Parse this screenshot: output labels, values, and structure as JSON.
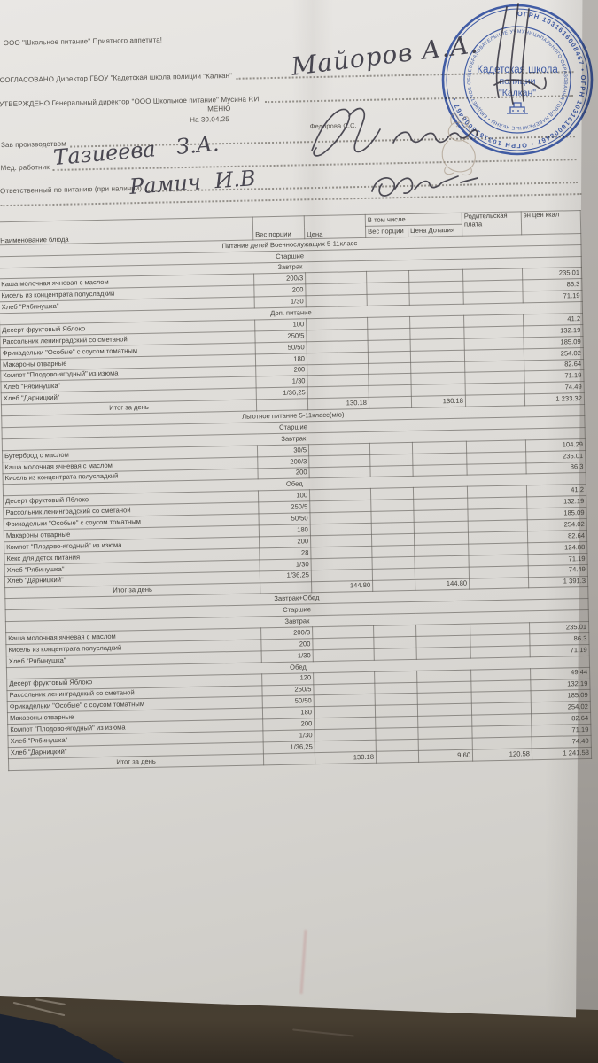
{
  "colors": {
    "stamp_blue": "#2e52b2",
    "ink": "#32303c",
    "paper": "#dcdad6"
  },
  "header": {
    "greeting": "ООО \"Школьное питание\" Приятного аппетита!",
    "agreed_label": "СОГЛАСОВАНО   Директор ГБОУ \"Кадетская школа полиции \"Калкан\"",
    "approved_label": "УТВЕРЖДЕНО   Генеральный директор \"ООО Школьное питание\" Мусина Р.И.",
    "menu_title": "МЕНЮ",
    "date_line": "На 30.04.25",
    "prepared_by": "Федорова С.С.",
    "production_manager_label": "Зав производством",
    "med_worker_label": "Мед. работник",
    "responsible_label": "Ответственный по питанию (при наличии)"
  },
  "signatures": {
    "director_name": "Майоров А.А.",
    "med_worker_name": "Тазиеева З.А.",
    "responsible_name": "Рамич И.В"
  },
  "stamp": {
    "outer_ring": "ОГРН 1031616008467  •  ОГРН 1031616008467  •  ОГРН 1031616008467  •",
    "inner_ring": "МУНИЦИПАЛЬНОГО ОБРАЗОВАНИЯ ГОРОД НАБЕРЕЖНЫЕ ЧЕЛНЫ • БЮДЖЕТНОЕ ОБЩЕОБРАЗОВАТЕЛЬНОЕ УЧРЕЖДЕНИЕ •",
    "center_line1": "Кадетская школа",
    "center_line2": "полиции",
    "center_line3": "\"Калкан\""
  },
  "table": {
    "headers": {
      "name": "Наименование блюда",
      "portion": "Вес порции",
      "price": "Цена",
      "including": "В том числе",
      "portion2": "Вес порции",
      "subsidy": "Цена Дотация",
      "parent": "Родительская плата",
      "kcal": "эн цен ккал"
    },
    "rows": [
      {
        "t": "group",
        "label": "Питание детей Военнослужащих 5-11класс"
      },
      {
        "t": "group",
        "label": "Старшие"
      },
      {
        "t": "group",
        "label": "Завтрак"
      },
      {
        "t": "dish",
        "name": "Каша молочная ячневая с маслом",
        "portion": "200/3",
        "kcal": "235.01"
      },
      {
        "t": "dish",
        "name": "Кисель из концентрата полусладкий",
        "portion": "200",
        "kcal": "86.3"
      },
      {
        "t": "dish",
        "name": "Хлеб \"Рябинушка\"",
        "portion": "1/30",
        "kcal": "71.19"
      },
      {
        "t": "group",
        "label": "Доп. питание"
      },
      {
        "t": "dish",
        "name": "Десерт фруктовый Яблоко",
        "portion": "100",
        "kcal": "41.2"
      },
      {
        "t": "dish",
        "name": "Рассольник ленинградский со сметаной",
        "portion": "250/5",
        "kcal": "132.19"
      },
      {
        "t": "dish",
        "name": "Фрикадельки \"Особые\" с соусом томатным",
        "portion": "50/50",
        "kcal": "185.09"
      },
      {
        "t": "dish",
        "name": "Макароны отварные",
        "portion": "180",
        "kcal": "254.02"
      },
      {
        "t": "dish",
        "name": "Компот \"Плодово-ягодный\" из изюма",
        "portion": "200",
        "kcal": "82.64"
      },
      {
        "t": "dish",
        "name": "Хлеб \"Рябинушка\"",
        "portion": "1/30",
        "kcal": "71.19"
      },
      {
        "t": "dish",
        "name": "Хлеб \"Дарницкий\"",
        "portion": "1/36,25",
        "kcal": "74.49"
      },
      {
        "t": "total",
        "label": "Итог за день",
        "price": "130.18",
        "subsidy": "130.18",
        "parent": "",
        "kcal": "1 233.32"
      },
      {
        "t": "group",
        "label": "Льготное питание 5-11класс(м/о)"
      },
      {
        "t": "group",
        "label": "Старшие"
      },
      {
        "t": "group",
        "label": "Завтрак"
      },
      {
        "t": "dish",
        "name": "Бутерброд с маслом",
        "portion": "30/5",
        "kcal": "104.29"
      },
      {
        "t": "dish",
        "name": "Каша молочная ячневая с маслом",
        "portion": "200/3",
        "kcal": "235.01"
      },
      {
        "t": "dish",
        "name": "Кисель из концентрата полусладкий",
        "portion": "200",
        "kcal": "86.3"
      },
      {
        "t": "group",
        "label": "Обед"
      },
      {
        "t": "dish",
        "name": "Десерт фруктовый Яблоко",
        "portion": "100",
        "kcal": "41.2"
      },
      {
        "t": "dish",
        "name": "Рассольник ленинградский со сметаной",
        "portion": "250/5",
        "kcal": "132.19"
      },
      {
        "t": "dish",
        "name": "Фрикадельки \"Особые\" с соусом томатным",
        "portion": "50/50",
        "kcal": "185.09"
      },
      {
        "t": "dish",
        "name": "Макароны отварные",
        "portion": "180",
        "kcal": "254.02"
      },
      {
        "t": "dish",
        "name": "Компот \"Плодово-ягодный\" из изюма",
        "portion": "200",
        "kcal": "82.64"
      },
      {
        "t": "dish",
        "name": "Кекс для детск питания",
        "portion": "28",
        "kcal": "124.88"
      },
      {
        "t": "dish",
        "name": "Хлеб \"Рябинушка\"",
        "portion": "1/30",
        "kcal": "71.19"
      },
      {
        "t": "dish",
        "name": "Хлеб \"Дарницкий\"",
        "portion": "1/36,25",
        "kcal": "74.49"
      },
      {
        "t": "total",
        "label": "Итог за день",
        "price": "144.80",
        "subsidy": "144.80",
        "parent": "",
        "kcal": "1 391.3"
      },
      {
        "t": "group",
        "label": "Завтрак+Обед"
      },
      {
        "t": "group",
        "label": "Старшие"
      },
      {
        "t": "group",
        "label": "Завтрак"
      },
      {
        "t": "dish",
        "name": "Каша молочная ячневая с маслом",
        "portion": "200/3",
        "kcal": "235.01"
      },
      {
        "t": "dish",
        "name": "Кисель из концентрата полусладкий",
        "portion": "200",
        "kcal": "86.3"
      },
      {
        "t": "dish",
        "name": "Хлеб \"Рябинушка\"",
        "portion": "1/30",
        "kcal": "71.19"
      },
      {
        "t": "group",
        "label": "Обед"
      },
      {
        "t": "dish",
        "name": "Десерт фруктовый Яблоко",
        "portion": "120",
        "kcal": "49.44"
      },
      {
        "t": "dish",
        "name": "Рассольник ленинградский со сметаной",
        "portion": "250/5",
        "kcal": "132.19"
      },
      {
        "t": "dish",
        "name": "Фрикадельки \"Особые\" с соусом томатным",
        "portion": "50/50",
        "kcal": "185.09"
      },
      {
        "t": "dish",
        "name": "Макароны отварные",
        "portion": "180",
        "kcal": "254.02"
      },
      {
        "t": "dish",
        "name": "Компот \"Плодово-ягодный\" из изюма",
        "portion": "200",
        "kcal": "82.64"
      },
      {
        "t": "dish",
        "name": "Хлеб \"Рябинушка\"",
        "portion": "1/30",
        "kcal": "71.19"
      },
      {
        "t": "dish",
        "name": "Хлеб \"Дарницкий\"",
        "portion": "1/36,25",
        "kcal": "74.49"
      },
      {
        "t": "total",
        "label": "Итог за день",
        "price": "130.18",
        "subsidy": "9.60",
        "parent": "120.58",
        "kcal": "1 241.58"
      }
    ]
  }
}
